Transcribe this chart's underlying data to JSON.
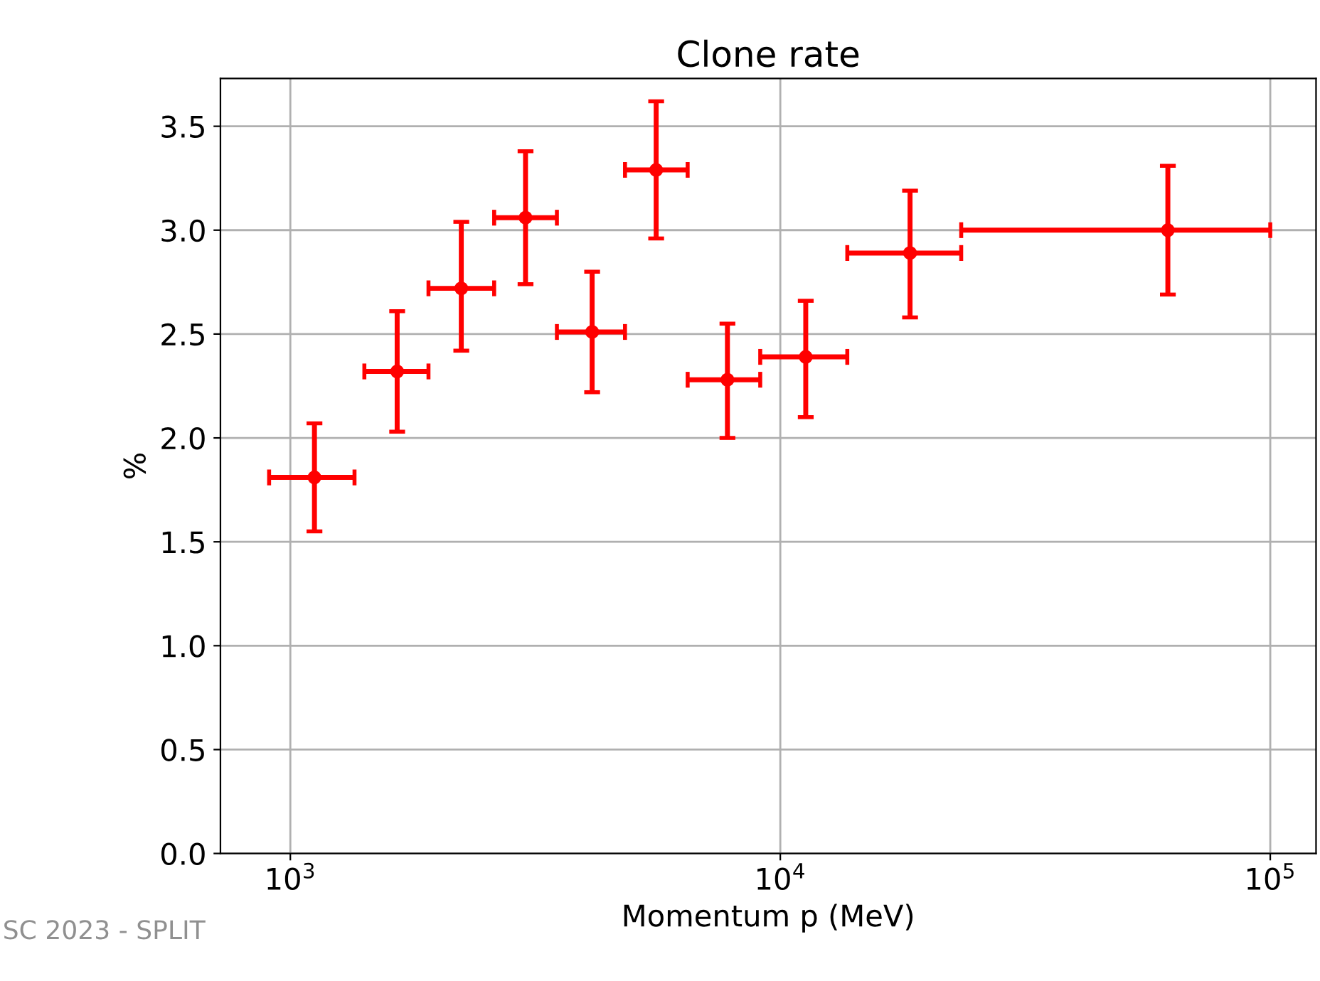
{
  "chart_data": {
    "type": "scatter",
    "title": "Clone rate",
    "xlabel": "Momentum p (MeV)",
    "ylabel": "%",
    "log": "x",
    "grid": true,
    "marker": "circle",
    "series": [
      {
        "color": "#ff0000",
        "x": [
          1120,
          1652,
          2233,
          3020,
          4130,
          5580,
          7800,
          11270,
          18400,
          61800
        ],
        "values": [
          1.81,
          2.32,
          2.72,
          3.06,
          2.51,
          3.29,
          2.28,
          2.39,
          2.89,
          3.0
        ],
        "errors": [
          [
            1.55,
            2.07
          ],
          [
            2.03,
            2.61
          ],
          [
            2.42,
            3.04
          ],
          [
            2.74,
            3.38
          ],
          [
            2.22,
            2.8
          ],
          [
            2.96,
            3.62
          ],
          [
            2.0,
            2.55
          ],
          [
            2.1,
            2.66
          ],
          [
            2.58,
            3.19
          ],
          [
            2.69,
            3.31
          ]
        ],
        "xerrors": [
          [
            905,
            1352
          ],
          [
            1416,
            1914
          ],
          [
            1914,
            2606
          ],
          [
            2606,
            3500
          ],
          [
            3500,
            4820
          ],
          [
            4820,
            6470
          ],
          [
            6470,
            9100
          ],
          [
            9100,
            13700
          ],
          [
            13700,
            23400
          ],
          [
            23400,
            100000
          ]
        ]
      }
    ],
    "xlim": [
      720,
      124000
    ],
    "xticks": [
      {
        "value": 1000,
        "label": "10$^{3}$"
      },
      {
        "value": 10000,
        "label": "10$^{4}$"
      },
      {
        "value": 100000,
        "label": "10$^{5}$"
      }
    ],
    "ylim": [
      0,
      3.73
    ],
    "yticks": [
      {
        "value": 0,
        "label": "0.0"
      },
      {
        "value": 0.5,
        "label": "0.5"
      },
      {
        "value": 1,
        "label": "1.0"
      },
      {
        "value": 1.5,
        "label": "1.5"
      },
      {
        "value": 2,
        "label": "2.0"
      },
      {
        "value": 2.5,
        "label": "2.5"
      },
      {
        "value": 3,
        "label": "3.0"
      },
      {
        "value": 3.5,
        "label": "3.5"
      }
    ],
    "annotations": [
      "SC 2023 - SPLIT"
    ]
  }
}
